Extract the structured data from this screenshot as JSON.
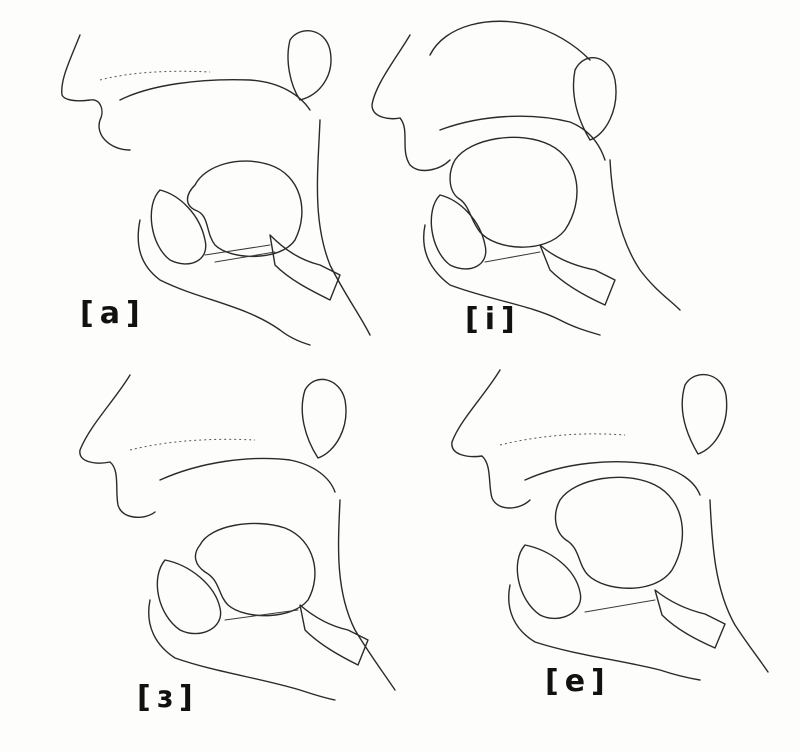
{
  "panels": [
    {
      "label": "[a]"
    },
    {
      "label": "[i]"
    },
    {
      "label": "[ɜ]"
    },
    {
      "label": "[e]"
    }
  ]
}
